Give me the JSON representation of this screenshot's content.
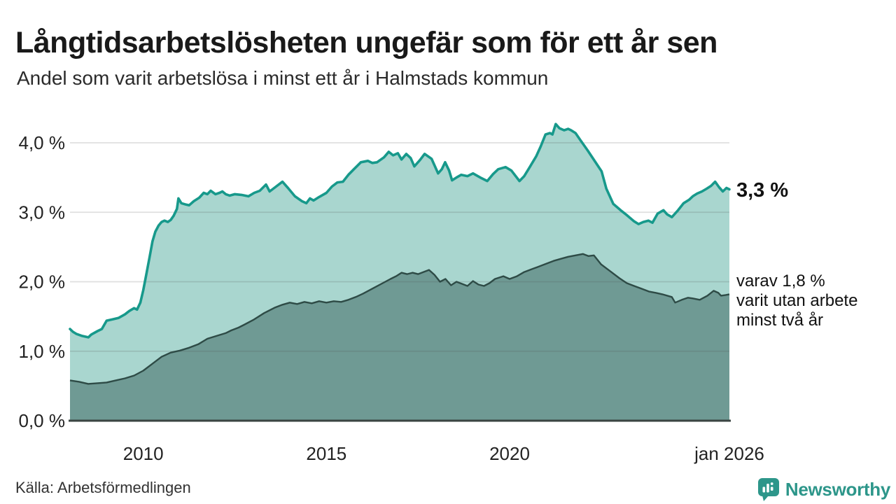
{
  "header": {
    "title": "Långtidsarbetslösheten ungefär som för ett år sen",
    "subtitle": "Andel som varit arbetslösa i minst ett år i Halmstads kommun"
  },
  "chart_data": {
    "type": "area",
    "title": "Långtidsarbetslösheten ungefär som för ett år sen",
    "subtitle": "Andel som varit arbetslösa i minst ett år i Halmstads kommun",
    "x_unit": "year (monthly data)",
    "x_range": [
      2008.0,
      2026.0
    ],
    "ylim": [
      0,
      4.4
    ],
    "grid": true,
    "colors": {
      "total_line": "#17998b",
      "total_fill": "#a9d6cf",
      "twoyear_line": "#2e4b46",
      "twoyear_fill": "#6f9a94",
      "axis": "#3a4442",
      "gridline": "#dadada"
    },
    "y_ticks": [
      {
        "value": 0.0,
        "label": "0,0 %"
      },
      {
        "value": 1.0,
        "label": "1,0 %"
      },
      {
        "value": 2.0,
        "label": "2,0 %"
      },
      {
        "value": 3.0,
        "label": "3,0 %"
      },
      {
        "value": 4.0,
        "label": "4,0 %"
      }
    ],
    "x_ticks": [
      {
        "t": 2010.0,
        "label": "2010"
      },
      {
        "t": 2015.0,
        "label": "2015"
      },
      {
        "t": 2020.0,
        "label": "2020"
      },
      {
        "t": 2026.0,
        "label": "jan 2026"
      }
    ],
    "series": [
      {
        "name": "arbetslösa minst ett år",
        "line_color": "#17998b",
        "fill_color": "#a9d6cf",
        "end_value_label": "3,3 %",
        "points": [
          [
            2008.0,
            1.32
          ],
          [
            2008.08,
            1.28
          ],
          [
            2008.17,
            1.25
          ],
          [
            2008.33,
            1.22
          ],
          [
            2008.5,
            1.2
          ],
          [
            2008.58,
            1.24
          ],
          [
            2008.75,
            1.29
          ],
          [
            2008.87,
            1.32
          ],
          [
            2009.0,
            1.44
          ],
          [
            2009.17,
            1.46
          ],
          [
            2009.33,
            1.48
          ],
          [
            2009.5,
            1.53
          ],
          [
            2009.62,
            1.58
          ],
          [
            2009.75,
            1.62
          ],
          [
            2009.83,
            1.6
          ],
          [
            2009.92,
            1.7
          ],
          [
            2010.0,
            1.88
          ],
          [
            2010.08,
            2.1
          ],
          [
            2010.17,
            2.35
          ],
          [
            2010.25,
            2.58
          ],
          [
            2010.33,
            2.72
          ],
          [
            2010.42,
            2.81
          ],
          [
            2010.5,
            2.86
          ],
          [
            2010.58,
            2.88
          ],
          [
            2010.67,
            2.86
          ],
          [
            2010.75,
            2.89
          ],
          [
            2010.83,
            2.95
          ],
          [
            2010.92,
            3.05
          ],
          [
            2010.96,
            3.2
          ],
          [
            2011.04,
            3.13
          ],
          [
            2011.17,
            3.11
          ],
          [
            2011.25,
            3.1
          ],
          [
            2011.38,
            3.16
          ],
          [
            2011.53,
            3.21
          ],
          [
            2011.65,
            3.28
          ],
          [
            2011.75,
            3.26
          ],
          [
            2011.84,
            3.31
          ],
          [
            2011.97,
            3.26
          ],
          [
            2012.08,
            3.28
          ],
          [
            2012.16,
            3.3
          ],
          [
            2012.25,
            3.26
          ],
          [
            2012.36,
            3.24
          ],
          [
            2012.5,
            3.26
          ],
          [
            2012.68,
            3.25
          ],
          [
            2012.87,
            3.23
          ],
          [
            2013.03,
            3.28
          ],
          [
            2013.18,
            3.31
          ],
          [
            2013.35,
            3.4
          ],
          [
            2013.45,
            3.3
          ],
          [
            2013.6,
            3.36
          ],
          [
            2013.8,
            3.44
          ],
          [
            2013.95,
            3.35
          ],
          [
            2014.14,
            3.23
          ],
          [
            2014.33,
            3.16
          ],
          [
            2014.45,
            3.13
          ],
          [
            2014.55,
            3.2
          ],
          [
            2014.65,
            3.17
          ],
          [
            2014.8,
            3.22
          ],
          [
            2015.0,
            3.28
          ],
          [
            2015.15,
            3.37
          ],
          [
            2015.3,
            3.43
          ],
          [
            2015.45,
            3.44
          ],
          [
            2015.6,
            3.54
          ],
          [
            2015.75,
            3.62
          ],
          [
            2015.94,
            3.72
          ],
          [
            2016.13,
            3.74
          ],
          [
            2016.25,
            3.71
          ],
          [
            2016.38,
            3.72
          ],
          [
            2016.57,
            3.79
          ],
          [
            2016.7,
            3.87
          ],
          [
            2016.82,
            3.82
          ],
          [
            2016.95,
            3.85
          ],
          [
            2017.05,
            3.76
          ],
          [
            2017.18,
            3.84
          ],
          [
            2017.3,
            3.78
          ],
          [
            2017.4,
            3.66
          ],
          [
            2017.55,
            3.75
          ],
          [
            2017.68,
            3.84
          ],
          [
            2017.87,
            3.77
          ],
          [
            2018.05,
            3.56
          ],
          [
            2018.15,
            3.62
          ],
          [
            2018.24,
            3.72
          ],
          [
            2018.35,
            3.6
          ],
          [
            2018.43,
            3.46
          ],
          [
            2018.55,
            3.5
          ],
          [
            2018.68,
            3.54
          ],
          [
            2018.85,
            3.52
          ],
          [
            2019.0,
            3.56
          ],
          [
            2019.2,
            3.5
          ],
          [
            2019.39,
            3.45
          ],
          [
            2019.55,
            3.55
          ],
          [
            2019.69,
            3.62
          ],
          [
            2019.89,
            3.65
          ],
          [
            2020.05,
            3.6
          ],
          [
            2020.27,
            3.45
          ],
          [
            2020.4,
            3.52
          ],
          [
            2020.55,
            3.65
          ],
          [
            2020.73,
            3.81
          ],
          [
            2020.85,
            3.95
          ],
          [
            2020.98,
            4.12
          ],
          [
            2021.1,
            4.14
          ],
          [
            2021.17,
            4.12
          ],
          [
            2021.26,
            4.27
          ],
          [
            2021.36,
            4.21
          ],
          [
            2021.49,
            4.18
          ],
          [
            2021.6,
            4.2
          ],
          [
            2021.68,
            4.18
          ],
          [
            2021.8,
            4.14
          ],
          [
            2021.93,
            4.04
          ],
          [
            2022.13,
            3.89
          ],
          [
            2022.32,
            3.74
          ],
          [
            2022.51,
            3.59
          ],
          [
            2022.64,
            3.34
          ],
          [
            2022.83,
            3.12
          ],
          [
            2023.03,
            3.03
          ],
          [
            2023.22,
            2.95
          ],
          [
            2023.4,
            2.87
          ],
          [
            2023.52,
            2.83
          ],
          [
            2023.65,
            2.86
          ],
          [
            2023.79,
            2.88
          ],
          [
            2023.9,
            2.85
          ],
          [
            2024.04,
            2.98
          ],
          [
            2024.2,
            3.03
          ],
          [
            2024.3,
            2.97
          ],
          [
            2024.43,
            2.93
          ],
          [
            2024.6,
            3.03
          ],
          [
            2024.75,
            3.13
          ],
          [
            2024.9,
            3.18
          ],
          [
            2025.0,
            3.23
          ],
          [
            2025.12,
            3.27
          ],
          [
            2025.25,
            3.3
          ],
          [
            2025.38,
            3.34
          ],
          [
            2025.5,
            3.38
          ],
          [
            2025.61,
            3.44
          ],
          [
            2025.72,
            3.36
          ],
          [
            2025.82,
            3.3
          ],
          [
            2025.92,
            3.35
          ],
          [
            2026.0,
            3.33
          ]
        ]
      },
      {
        "name": "varav utan arbete minst två år",
        "line_color": "#2e4b46",
        "fill_color": "#6f9a94",
        "end_value_label": "1,8 %",
        "points": [
          [
            2008.0,
            0.58
          ],
          [
            2008.25,
            0.56
          ],
          [
            2008.5,
            0.53
          ],
          [
            2008.75,
            0.54
          ],
          [
            2009.0,
            0.55
          ],
          [
            2009.25,
            0.58
          ],
          [
            2009.5,
            0.61
          ],
          [
            2009.75,
            0.65
          ],
          [
            2010.0,
            0.72
          ],
          [
            2010.25,
            0.82
          ],
          [
            2010.5,
            0.92
          ],
          [
            2010.75,
            0.98
          ],
          [
            2011.0,
            1.01
          ],
          [
            2011.25,
            1.05
          ],
          [
            2011.5,
            1.1
          ],
          [
            2011.75,
            1.18
          ],
          [
            2012.0,
            1.22
          ],
          [
            2012.25,
            1.26
          ],
          [
            2012.4,
            1.3
          ],
          [
            2012.6,
            1.34
          ],
          [
            2012.75,
            1.38
          ],
          [
            2013.0,
            1.45
          ],
          [
            2013.3,
            1.55
          ],
          [
            2013.6,
            1.63
          ],
          [
            2013.8,
            1.67
          ],
          [
            2014.0,
            1.7
          ],
          [
            2014.2,
            1.68
          ],
          [
            2014.4,
            1.71
          ],
          [
            2014.6,
            1.69
          ],
          [
            2014.8,
            1.72
          ],
          [
            2015.0,
            1.7
          ],
          [
            2015.2,
            1.72
          ],
          [
            2015.4,
            1.71
          ],
          [
            2015.6,
            1.74
          ],
          [
            2015.8,
            1.78
          ],
          [
            2016.0,
            1.83
          ],
          [
            2016.25,
            1.9
          ],
          [
            2016.5,
            1.97
          ],
          [
            2016.75,
            2.04
          ],
          [
            2016.9,
            2.08
          ],
          [
            2017.05,
            2.13
          ],
          [
            2017.2,
            2.11
          ],
          [
            2017.35,
            2.13
          ],
          [
            2017.5,
            2.11
          ],
          [
            2017.65,
            2.14
          ],
          [
            2017.8,
            2.17
          ],
          [
            2017.95,
            2.1
          ],
          [
            2018.1,
            2.0
          ],
          [
            2018.25,
            2.04
          ],
          [
            2018.4,
            1.95
          ],
          [
            2018.55,
            2.0
          ],
          [
            2018.7,
            1.97
          ],
          [
            2018.85,
            1.94
          ],
          [
            2019.0,
            2.01
          ],
          [
            2019.15,
            1.96
          ],
          [
            2019.3,
            1.94
          ],
          [
            2019.45,
            1.98
          ],
          [
            2019.6,
            2.04
          ],
          [
            2019.83,
            2.08
          ],
          [
            2020.0,
            2.04
          ],
          [
            2020.2,
            2.08
          ],
          [
            2020.4,
            2.14
          ],
          [
            2020.6,
            2.18
          ],
          [
            2020.75,
            2.21
          ],
          [
            2021.0,
            2.26
          ],
          [
            2021.2,
            2.3
          ],
          [
            2021.4,
            2.33
          ],
          [
            2021.6,
            2.36
          ],
          [
            2021.8,
            2.38
          ],
          [
            2022.0,
            2.4
          ],
          [
            2022.15,
            2.37
          ],
          [
            2022.3,
            2.38
          ],
          [
            2022.5,
            2.25
          ],
          [
            2022.75,
            2.15
          ],
          [
            2023.0,
            2.05
          ],
          [
            2023.2,
            1.98
          ],
          [
            2023.4,
            1.94
          ],
          [
            2023.6,
            1.9
          ],
          [
            2023.8,
            1.86
          ],
          [
            2024.0,
            1.84
          ],
          [
            2024.17,
            1.82
          ],
          [
            2024.43,
            1.78
          ],
          [
            2024.52,
            1.7
          ],
          [
            2024.7,
            1.74
          ],
          [
            2024.87,
            1.77
          ],
          [
            2025.0,
            1.76
          ],
          [
            2025.19,
            1.74
          ],
          [
            2025.4,
            1.8
          ],
          [
            2025.57,
            1.87
          ],
          [
            2025.7,
            1.84
          ],
          [
            2025.77,
            1.8
          ],
          [
            2025.9,
            1.81
          ],
          [
            2026.0,
            1.82
          ]
        ]
      }
    ],
    "annotations": {
      "total_label": "3,3 %",
      "detail_lines": [
        "varav 1,8 %",
        "varit utan arbete",
        "minst två år"
      ]
    },
    "legend_position": "right-of-plot"
  },
  "footer": {
    "source": "Källa: Arbetsförmedlingen",
    "brand": "Newsworthy",
    "brand_color": "#2d968a"
  }
}
